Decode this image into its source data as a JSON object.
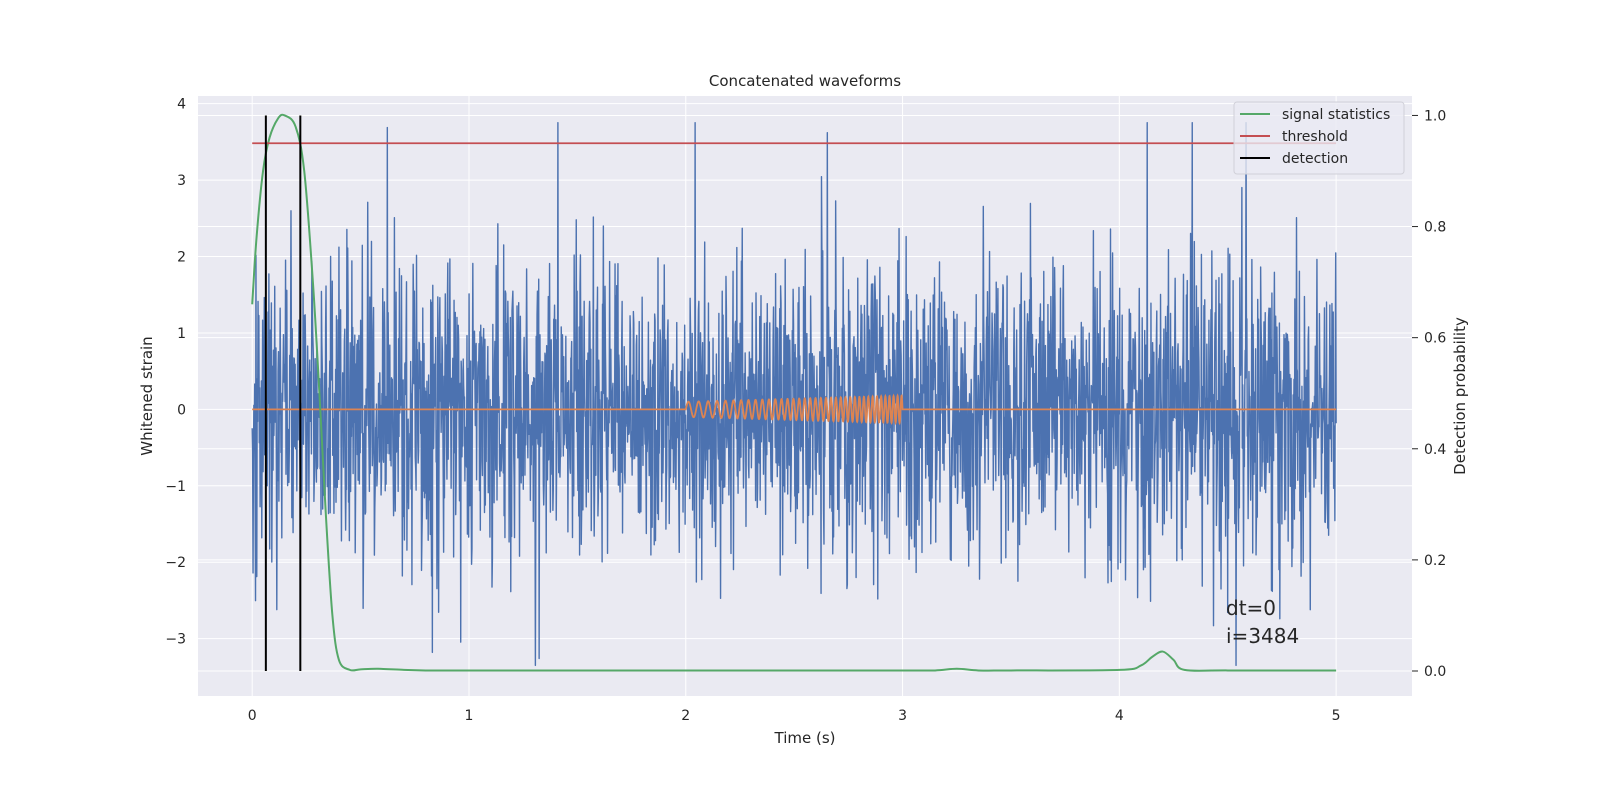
{
  "chart_data": {
    "type": "line",
    "title": "Concatenated waveforms",
    "xlabel": "Time (s)",
    "ylabel_left": "Whitened strain",
    "ylabel_right": "Detection probability",
    "xlim": [
      -0.25,
      5.35
    ],
    "ylim_left": [
      -3.75,
      4.1
    ],
    "ylim_right": [
      -0.045,
      1.035
    ],
    "x_ticks": [
      0,
      1,
      2,
      3,
      4,
      5
    ],
    "x_tick_labels": [
      "0",
      "1",
      "2",
      "3",
      "4",
      "5"
    ],
    "y_left_ticks": [
      -3,
      -2,
      -1,
      0,
      1,
      2,
      3,
      4
    ],
    "y_left_tick_labels": [
      "−3",
      "−2",
      "−1",
      "0",
      "1",
      "2",
      "3",
      "4"
    ],
    "y_right_ticks": [
      0.0,
      0.2,
      0.4,
      0.6,
      0.8,
      1.0
    ],
    "y_right_tick_labels": [
      "0.0",
      "0.2",
      "0.4",
      "0.6",
      "0.8",
      "1.0"
    ],
    "grid": true,
    "legend_position": "top-right",
    "legend": [
      {
        "label": "signal statistics",
        "color": "#55a868"
      },
      {
        "label": "threshold",
        "color": "#c44e52"
      },
      {
        "label": "detection",
        "color": "#000000"
      }
    ],
    "series": [
      {
        "kind": "noise",
        "axis": "left",
        "color": "#4c72b0",
        "x_range": [
          0.0,
          5.0
        ],
        "typical_range": [
          -0.7,
          0.9
        ],
        "max": 3.75,
        "min": -3.35
      },
      {
        "kind": "chirp",
        "axis": "left",
        "color": "#dd8452",
        "x_range": [
          0.0,
          5.0
        ],
        "chirp_start": 2.0,
        "chirp_end": 3.0,
        "amplitude_start": 0.1,
        "amplitude_end": 0.18,
        "frequency_start_hz": 20,
        "frequency_end_hz": 55
      },
      {
        "kind": "signal statistics",
        "axis": "right",
        "color": "#55a868",
        "x": [
          0.0,
          0.02,
          0.05,
          0.08,
          0.12,
          0.15,
          0.2,
          0.24,
          0.28,
          0.31,
          0.34,
          0.37,
          0.4,
          0.45,
          0.5,
          0.58,
          0.7,
          0.8,
          1.0,
          1.5,
          2.0,
          2.5,
          3.0,
          3.15,
          3.25,
          3.35,
          3.5,
          4.0,
          4.1,
          4.15,
          4.2,
          4.25,
          4.3,
          4.5,
          5.0
        ],
        "y": [
          0.66,
          0.78,
          0.9,
          0.96,
          0.995,
          1.0,
          0.98,
          0.9,
          0.7,
          0.5,
          0.28,
          0.1,
          0.02,
          0.002,
          0.003,
          0.004,
          0.002,
          0.001,
          0.001,
          0.001,
          0.001,
          0.001,
          0.001,
          0.001,
          0.004,
          0.001,
          0.001,
          0.002,
          0.01,
          0.025,
          0.035,
          0.02,
          0.002,
          0.001,
          0.001
        ]
      },
      {
        "kind": "threshold",
        "axis": "right",
        "color": "#c44e52",
        "x": [
          0.0,
          5.0
        ],
        "y": [
          0.95,
          0.95
        ]
      },
      {
        "kind": "detection",
        "axis": "right",
        "color": "#000000",
        "x": [
          0.063,
          0.222
        ],
        "y_range": [
          0.0,
          1.0
        ]
      }
    ],
    "annotations": [
      "dt=0",
      "i=3484"
    ]
  }
}
